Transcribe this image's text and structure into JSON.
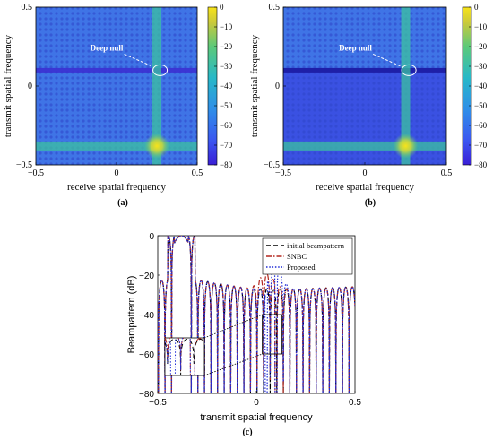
{
  "colors": {
    "heat_low": "#3a1fd6",
    "heat_mid": "#2aa8d8",
    "heat_high": "#f7e31a",
    "initial_line": "#000000",
    "snbc_line": "#b3261e",
    "proposed_line": "#1f2bd6"
  },
  "chart_data": [
    {
      "type": "heatmap",
      "panel_label": "(a)",
      "xlabel": "receive spatial frequency",
      "ylabel": "transmit spatial frequency",
      "x_ticks": [
        "−0.5",
        "0",
        "0.5"
      ],
      "y_ticks": [
        "0.5",
        "0",
        "−0.5"
      ],
      "xlim": [
        -0.5,
        0.5
      ],
      "ylim": [
        -0.5,
        0.5
      ],
      "colorbar_ticks": [
        "0",
        "−10",
        "−20",
        "−30",
        "−40",
        "−50",
        "−60",
        "−70",
        "−80"
      ],
      "clim": [
        -80,
        0
      ],
      "mainlobe": {
        "receive": 0.25,
        "transmit": -0.38
      },
      "null_band_transmit": 0.1,
      "null_depth": "partial",
      "annotation": {
        "text": "Deep null",
        "receive": 0.27,
        "transmit": 0.1
      }
    },
    {
      "type": "heatmap",
      "panel_label": "(b)",
      "xlabel": "receive spatial frequency",
      "ylabel": "transmit spatial frequency",
      "x_ticks": [
        "−0.5",
        "0",
        "0.5"
      ],
      "y_ticks": [
        "0.5",
        "0",
        "−0.5"
      ],
      "xlim": [
        -0.5,
        0.5
      ],
      "ylim": [
        -0.5,
        0.5
      ],
      "colorbar_ticks": [
        "0",
        "−10",
        "−20",
        "−30",
        "−40",
        "−50",
        "−60",
        "−70",
        "−80"
      ],
      "clim": [
        -80,
        0
      ],
      "mainlobe": {
        "receive": 0.25,
        "transmit": -0.38
      },
      "null_band_transmit": 0.1,
      "null_depth": "deep",
      "annotation": {
        "text": "Deep null",
        "receive": 0.27,
        "transmit": 0.1
      }
    },
    {
      "type": "line",
      "panel_label": "(c)",
      "xlabel": "transmit spatial frequency",
      "ylabel": "Beampattern (dB)",
      "x_ticks": [
        "−0.5",
        "0",
        "0.5"
      ],
      "y_ticks": [
        "0",
        "−20",
        "−40",
        "−60",
        "−80"
      ],
      "xlim": [
        -0.5,
        0.5
      ],
      "ylim": [
        -80,
        0
      ],
      "mainlobe_at": -0.38,
      "nulls_near": [
        0.05,
        0.1
      ],
      "series": [
        {
          "name": "initial beampattern",
          "style": "dashed",
          "color_key": "initial_line"
        },
        {
          "name": "SNBC",
          "style": "dashdot",
          "color_key": "snbc_line"
        },
        {
          "name": "Proposed",
          "style": "dotted",
          "color_key": "proposed_line"
        }
      ],
      "legend_position": "top-right",
      "inset": {
        "x_range": [
          0.03,
          0.13
        ],
        "note": "zoomed null region"
      }
    }
  ]
}
